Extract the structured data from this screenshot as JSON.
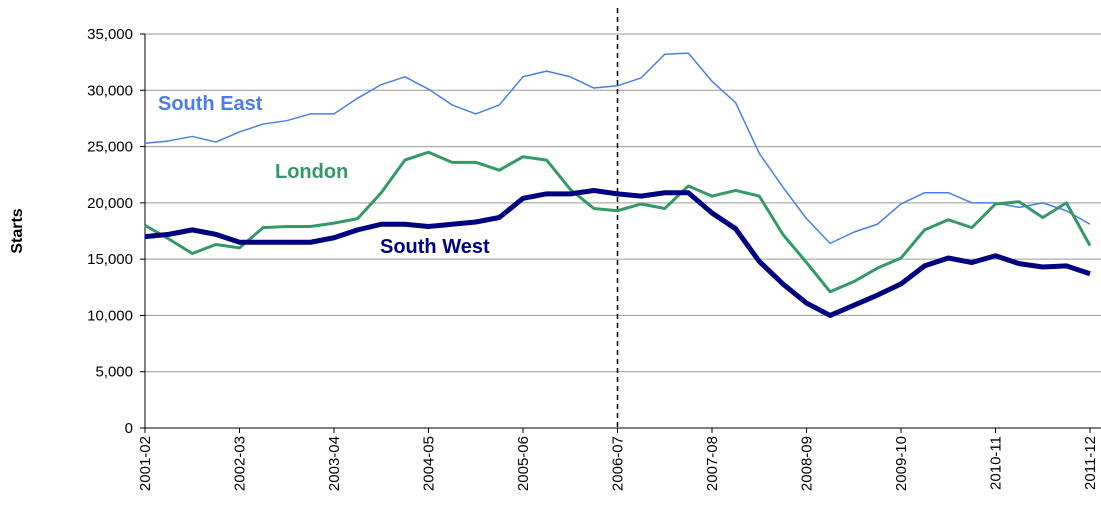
{
  "chart_data": {
    "type": "line",
    "y_label": "Starts",
    "categories": [
      "2001-02",
      null,
      null,
      null,
      "2002-03",
      null,
      null,
      null,
      "2003-04",
      null,
      null,
      null,
      "2004-05",
      null,
      null,
      null,
      "2005-06",
      null,
      null,
      null,
      "2006-07",
      null,
      null,
      null,
      "2007-08",
      null,
      null,
      null,
      "2008-09",
      null,
      null,
      null,
      "2009-10",
      null,
      null,
      null,
      "2010-11",
      null,
      null,
      null,
      "2011-12"
    ],
    "series": [
      {
        "name": "South East",
        "color": "#4a7ee6",
        "values": [
          25300,
          25500,
          25900,
          25400,
          26300,
          27000,
          27300,
          27900,
          27900,
          29300,
          30500,
          31200,
          30100,
          28700,
          27900,
          28700,
          31200,
          31700,
          31200,
          30200,
          30400,
          31100,
          33200,
          33300,
          30800,
          28900,
          24400,
          21400,
          18600,
          16400,
          17400,
          18100,
          19900,
          20900,
          20900,
          20000,
          20000,
          19600,
          20000,
          19300,
          18100
        ]
      },
      {
        "name": "London",
        "color": "#339966",
        "values": [
          18000,
          16800,
          15500,
          16300,
          16000,
          17800,
          17900,
          17900,
          18200,
          18600,
          20900,
          23800,
          24500,
          23600,
          23600,
          22900,
          24100,
          23800,
          21200,
          19500,
          19300,
          19900,
          19500,
          21500,
          20600,
          21100,
          20600,
          17200,
          14700,
          12100,
          13000,
          14200,
          15100,
          17600,
          18500,
          17800,
          19900,
          20100,
          18700,
          20000,
          16200
        ]
      },
      {
        "name": "South West",
        "color": "#000080",
        "values": [
          17000,
          17200,
          17600,
          17200,
          16500,
          16500,
          16500,
          16500,
          16900,
          17600,
          18100,
          18100,
          17900,
          18100,
          18300,
          18700,
          20400,
          20800,
          20800,
          21100,
          20800,
          20600,
          20900,
          20900,
          19100,
          17700,
          14800,
          12800,
          11100,
          10000,
          10900,
          11800,
          12800,
          14400,
          15100,
          14700,
          15300,
          14600,
          14300,
          14400,
          13700
        ]
      }
    ],
    "ylim": [
      0,
      35000
    ],
    "yticks": [
      0,
      {
        "value": 5000,
        "label": "5,000"
      },
      {
        "value": 10000,
        "label": "10,000"
      },
      {
        "value": 15000,
        "label": "15,000"
      },
      {
        "value": 20000,
        "label": "20,000"
      },
      {
        "value": 25000,
        "label": "25,000"
      },
      {
        "value": 30000,
        "label": "30,000"
      },
      {
        "value": 35000,
        "label": "35,000"
      }
    ],
    "grid": true
  }
}
